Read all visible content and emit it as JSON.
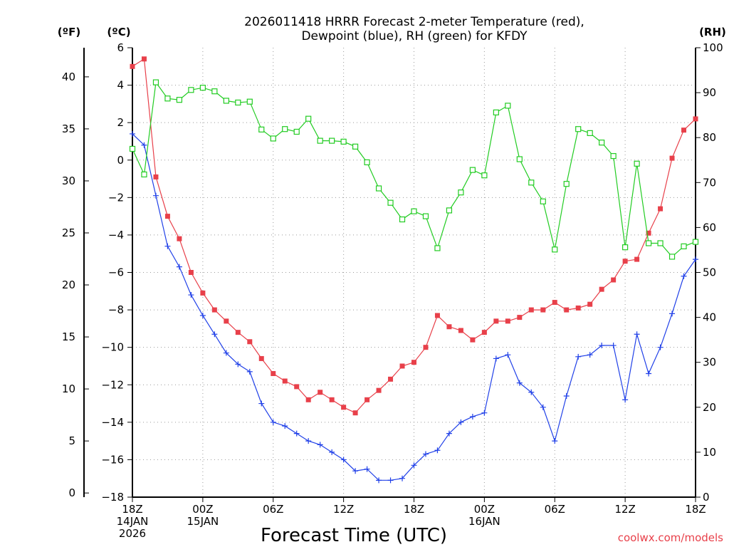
{
  "chart_data": {
    "type": "line",
    "title_lines": [
      "2026011418 HRRR Forecast 2-meter Temperature (red),",
      "Dewpoint (blue), RH (green) for KFDY"
    ],
    "xlabel": "Forecast Time (UTC)",
    "credit": "coolwx.com/models",
    "unit_labels": {
      "fahrenheit": "(ºF)",
      "celsius": "(ºC)",
      "rh": "(RH)"
    },
    "x_ticks": [
      {
        "hour": 0,
        "lines": [
          "18Z",
          "14JAN",
          "2026"
        ]
      },
      {
        "hour": 6,
        "lines": [
          "00Z",
          "15JAN"
        ]
      },
      {
        "hour": 12,
        "lines": [
          "06Z"
        ]
      },
      {
        "hour": 18,
        "lines": [
          "12Z"
        ]
      },
      {
        "hour": 24,
        "lines": [
          "18Z"
        ]
      },
      {
        "hour": 30,
        "lines": [
          "00Z",
          "16JAN"
        ]
      },
      {
        "hour": 36,
        "lines": [
          "06Z"
        ]
      },
      {
        "hour": 42,
        "lines": [
          "12Z"
        ]
      },
      {
        "hour": 48,
        "lines": [
          "18Z"
        ]
      }
    ],
    "x_range_hours": [
      0,
      48
    ],
    "celsius_axis": {
      "range": [
        -18,
        6
      ],
      "ticks": [
        "6",
        "4",
        "2",
        "0",
        "−2",
        "−4",
        "−6",
        "−8",
        "−10",
        "−12",
        "−14",
        "−16",
        "−18"
      ]
    },
    "fahrenheit_axis": {
      "ticks": [
        "40",
        "35",
        "30",
        "25",
        "20",
        "15",
        "10",
        "5",
        "0"
      ]
    },
    "rh_axis": {
      "range": [
        0,
        100
      ],
      "ticks": [
        "100",
        "90",
        "80",
        "70",
        "60",
        "50",
        "40",
        "30",
        "20",
        "10",
        "0"
      ]
    },
    "grid": true,
    "series": [
      {
        "name": "Temperature",
        "color": "#e8404a",
        "marker": "filled-square",
        "axis": "celsius",
        "values": [
          5.0,
          5.4,
          -0.9,
          -3.0,
          -4.2,
          -6.0,
          -7.1,
          -8.0,
          -8.6,
          -9.2,
          -9.7,
          -10.6,
          -11.4,
          -11.8,
          -12.1,
          -12.8,
          -12.4,
          -12.8,
          -13.2,
          -13.5,
          -12.8,
          -12.3,
          -11.7,
          -11.0,
          -10.8,
          -10.0,
          -8.3,
          -8.9,
          -9.1,
          -9.6,
          -9.2,
          -8.6,
          -8.6,
          -8.4,
          -8.0,
          -8.0,
          -7.6,
          -8.0,
          -7.9,
          -7.7,
          -6.9,
          -6.4,
          -5.4,
          -5.3,
          -3.9,
          -2.6,
          0.1,
          1.6,
          2.2
        ]
      },
      {
        "name": "Dewpoint",
        "color": "#2040e8",
        "marker": "plus",
        "axis": "celsius",
        "values": [
          1.4,
          0.8,
          -1.9,
          -4.6,
          -5.7,
          -7.2,
          -8.3,
          -9.3,
          -10.3,
          -10.9,
          -11.3,
          -13.0,
          -14.0,
          -14.2,
          -14.6,
          -15.0,
          -15.2,
          -15.6,
          -16.0,
          -16.6,
          -16.5,
          -17.1,
          -17.1,
          -17.0,
          -16.3,
          -15.7,
          -15.5,
          -14.6,
          -14.0,
          -13.7,
          -13.5,
          -10.6,
          -10.4,
          -11.9,
          -12.4,
          -13.2,
          -15.0,
          -12.6,
          -10.5,
          -10.4,
          -9.9,
          -9.9,
          -12.8,
          -9.3,
          -11.4,
          -10.0,
          -8.2,
          -6.2,
          -5.3
        ]
      },
      {
        "name": "RH",
        "color": "#22cc22",
        "marker": "open-square",
        "axis": "rh",
        "values": [
          77.5,
          71.8,
          92.3,
          88.7,
          88.4,
          90.6,
          91.1,
          90.3,
          88.2,
          87.8,
          88.0,
          81.8,
          79.8,
          81.9,
          81.3,
          84.2,
          79.3,
          79.3,
          79.1,
          78.0,
          74.5,
          68.7,
          65.5,
          61.8,
          63.6,
          62.5,
          55.4,
          63.8,
          67.8,
          72.8,
          71.6,
          85.6,
          87.1,
          75.2,
          70.0,
          65.8,
          55.1,
          69.7,
          81.9,
          81.0,
          78.9,
          75.9,
          55.6,
          74.2,
          56.5,
          56.5,
          53.5,
          55.8,
          56.8
        ]
      }
    ]
  }
}
